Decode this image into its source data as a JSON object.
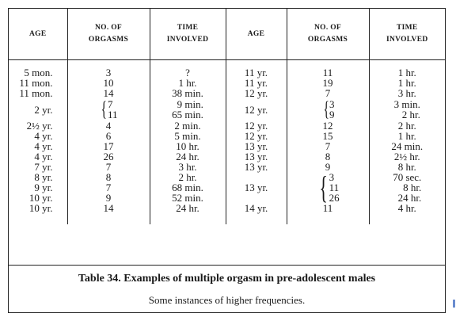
{
  "headers": {
    "age": "AGE",
    "orgasms_line1": "NO. OF",
    "orgasms_line2": "ORGASMS",
    "time_line1": "TIME",
    "time_line2": "INVOLVED"
  },
  "left_rows": [
    {
      "age": "5 mon.",
      "orgasms": "3",
      "time": "?"
    },
    {
      "age": "11 mon.",
      "orgasms": "10",
      "time": "1 hr."
    },
    {
      "age": "11 mon.",
      "orgasms": "14",
      "time": "38 min."
    },
    {
      "age": "2 yr.",
      "orgasms": [
        "7",
        "11"
      ],
      "time": [
        "9 min.",
        "65 min."
      ]
    },
    {
      "age": "2½ yr.",
      "orgasms": "4",
      "time": "2 min."
    },
    {
      "age": "4 yr.",
      "orgasms": "6",
      "time": "5 min."
    },
    {
      "age": "4 yr.",
      "orgasms": "17",
      "time": "10 hr."
    },
    {
      "age": "4 yr.",
      "orgasms": "26",
      "time": "24 hr."
    },
    {
      "age": "7 yr.",
      "orgasms": "7",
      "time": "3 hr."
    },
    {
      "age": "8 yr.",
      "orgasms": "8",
      "time": "2 hr."
    },
    {
      "age": "9 yr.",
      "orgasms": "7",
      "time": "68 min."
    },
    {
      "age": "10 yr.",
      "orgasms": "9",
      "time": "52 min."
    },
    {
      "age": "10 yr.",
      "orgasms": "14",
      "time": "24 hr."
    }
  ],
  "right_rows": [
    {
      "age": "11 yr.",
      "orgasms": "11",
      "time": "1 hr."
    },
    {
      "age": "11 yr.",
      "orgasms": "19",
      "time": "1 hr."
    },
    {
      "age": "12 yr.",
      "orgasms": "7",
      "time": "3 hr."
    },
    {
      "age": "12 yr.",
      "orgasms": [
        "3",
        "9"
      ],
      "time": [
        "3 min.",
        "2 hr."
      ]
    },
    {
      "age": "12 yr.",
      "orgasms": "12",
      "time": "2 hr."
    },
    {
      "age": "12 yr.",
      "orgasms": "15",
      "time": "1 hr."
    },
    {
      "age": "13 yr.",
      "orgasms": "7",
      "time": "24 min."
    },
    {
      "age": "13 yr.",
      "orgasms": "8",
      "time": "2½ hr."
    },
    {
      "age": "13 yr.",
      "orgasms": "9",
      "time": "8 hr."
    },
    {
      "age": "13 yr.",
      "orgasms": [
        "3",
        "11",
        "26"
      ],
      "time": [
        "70 sec.",
        "8 hr.",
        "24 hr."
      ]
    },
    {
      "age": "14 yr.",
      "orgasms": "11",
      "time": "4 hr."
    }
  ],
  "caption": "Table 34. Examples of multiple orgasm in pre-adolescent males",
  "subcaption": "Some instances of higher frequencies."
}
